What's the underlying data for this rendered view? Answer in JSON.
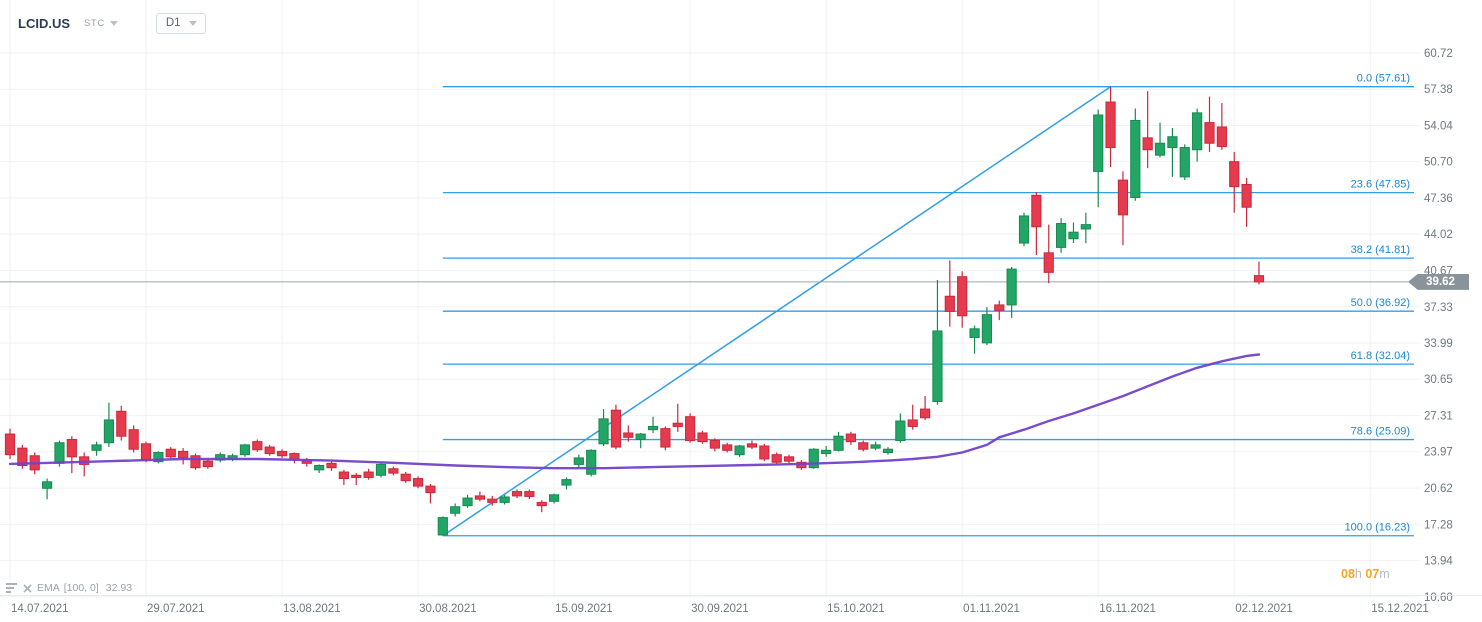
{
  "header": {
    "symbol": "LCID.US",
    "market_tag": "STC",
    "timeframe": "D1"
  },
  "indicator_row": {
    "name": "EMA",
    "params": "[100, 0]",
    "value": "32.93"
  },
  "countdown": {
    "hours_value": "08",
    "hours_unit": "h",
    "minutes_value": "07",
    "minutes_unit": "m"
  },
  "price_badge": "39.62",
  "colors": {
    "up": "#23A566",
    "up_border": "#178A50",
    "down": "#E63B4E",
    "down_border": "#C9283C",
    "fib": "#2F9FE6",
    "fib_label": "#1B87D4",
    "trend": "#2F9FE6",
    "ema_line": "#7142C9",
    "price_line": "#9FA6AC",
    "badge_bg": "#8A929A",
    "grid": "#F0F2F4",
    "axis_text": "#6F7782",
    "accent_orange": "#F5A623"
  },
  "chart_data": {
    "type": "candlestick",
    "title": "LCID.US D1",
    "current_price": 39.62,
    "y_ticks": [
      "60.72",
      "57.38",
      "54.04",
      "50.70",
      "47.36",
      "44.02",
      "40.67",
      "37.33",
      "33.99",
      "30.65",
      "27.31",
      "23.97",
      "20.62",
      "17.28",
      "13.94",
      "10.60"
    ],
    "y_axis_range": [
      10.6,
      60.72
    ],
    "grid": true,
    "x_ticks": [
      {
        "label": "14.07.2021",
        "index": 0
      },
      {
        "label": "29.07.2021",
        "index": 11
      },
      {
        "label": "13.08.2021",
        "index": 22
      },
      {
        "label": "30.08.2021",
        "index": 33
      },
      {
        "label": "15.09.2021",
        "index": 44
      },
      {
        "label": "30.09.2021",
        "index": 55
      },
      {
        "label": "15.10.2021",
        "index": 66
      },
      {
        "label": "01.11.2021",
        "index": 77
      },
      {
        "label": "16.11.2021",
        "index": 88
      },
      {
        "label": "02.12.2021",
        "index": 99
      },
      {
        "label": "15.12.2021",
        "index": 110
      }
    ],
    "fib_levels": [
      {
        "label": "0.0 (57.61)",
        "price": 57.61
      },
      {
        "label": "23.6 (47.85)",
        "price": 47.85
      },
      {
        "label": "38.2 (41.81)",
        "price": 41.81
      },
      {
        "label": "50.0 (36.92)",
        "price": 36.92
      },
      {
        "label": "61.8 (32.04)",
        "price": 32.04
      },
      {
        "label": "78.6 (25.09)",
        "price": 25.09
      },
      {
        "label": "100.0 (16.23)",
        "price": 16.23
      }
    ],
    "trendline": {
      "from_index": 35,
      "from_price": 16.23,
      "to_index": 89,
      "to_price": 57.61
    },
    "ema": {
      "name": "EMA [100, 0]",
      "last_value": 32.93,
      "points": [
        [
          0,
          22.85
        ],
        [
          8,
          23.1
        ],
        [
          14,
          23.3
        ],
        [
          20,
          23.3
        ],
        [
          26,
          23.15
        ],
        [
          31,
          22.95
        ],
        [
          36,
          22.7
        ],
        [
          40,
          22.55
        ],
        [
          44,
          22.45
        ],
        [
          48,
          22.45
        ],
        [
          52,
          22.55
        ],
        [
          56,
          22.65
        ],
        [
          60,
          22.75
        ],
        [
          64,
          22.85
        ],
        [
          68,
          23.0
        ],
        [
          71,
          23.15
        ],
        [
          73,
          23.3
        ],
        [
          75,
          23.5
        ],
        [
          77,
          23.9
        ],
        [
          79,
          24.6
        ],
        [
          80,
          25.3
        ],
        [
          82,
          26.0
        ],
        [
          84,
          26.8
        ],
        [
          86,
          27.5
        ],
        [
          88,
          28.3
        ],
        [
          90,
          29.1
        ],
        [
          92,
          30.0
        ],
        [
          94,
          30.9
        ],
        [
          96,
          31.7
        ],
        [
          98,
          32.3
        ],
        [
          100,
          32.8
        ],
        [
          101,
          32.93
        ]
      ]
    },
    "candles": [
      [
        "14.07",
        25.6,
        26.1,
        23.3,
        23.7
      ],
      [
        "15.07",
        24.3,
        24.6,
        22.4,
        22.7
      ],
      [
        "16.07",
        23.6,
        23.9,
        21.9,
        22.3
      ],
      [
        "19.07",
        20.6,
        21.5,
        19.6,
        21.2
      ],
      [
        "20.07",
        22.9,
        25.0,
        22.6,
        24.8
      ],
      [
        "21.07",
        25.1,
        25.4,
        22.0,
        23.5
      ],
      [
        "22.07",
        23.5,
        23.9,
        21.7,
        22.8
      ],
      [
        "23.07",
        24.1,
        24.9,
        23.6,
        24.6
      ],
      [
        "26.07",
        24.8,
        28.5,
        24.4,
        26.9
      ],
      [
        "27.07",
        27.7,
        28.2,
        25.0,
        25.4
      ],
      [
        "28.07",
        26.0,
        26.4,
        23.9,
        24.2
      ],
      [
        "29.07",
        24.7,
        24.9,
        23.0,
        23.2
      ],
      [
        "30.07",
        23.05,
        24.0,
        22.9,
        23.9
      ],
      [
        "02.08",
        24.2,
        24.4,
        23.3,
        23.5
      ],
      [
        "03.08",
        24.0,
        24.3,
        22.8,
        23.4
      ],
      [
        "04.08",
        23.6,
        23.8,
        22.3,
        22.5
      ],
      [
        "05.08",
        23.1,
        23.3,
        22.4,
        22.6
      ],
      [
        "06.08",
        23.2,
        23.9,
        23.0,
        23.7
      ],
      [
        "09.08",
        23.3,
        23.8,
        23.1,
        23.6
      ],
      [
        "10.08",
        23.7,
        24.7,
        23.5,
        24.6
      ],
      [
        "11.08",
        24.9,
        25.1,
        23.95,
        24.15
      ],
      [
        "12.08",
        24.4,
        24.6,
        23.6,
        23.8
      ],
      [
        "13.08",
        24.0,
        24.2,
        23.4,
        23.6
      ],
      [
        "16.08",
        23.8,
        23.9,
        22.9,
        23.3
      ],
      [
        "17.08",
        23.2,
        23.4,
        22.6,
        22.9
      ],
      [
        "18.08",
        22.3,
        22.8,
        22.0,
        22.7
      ],
      [
        "19.08",
        22.9,
        23.1,
        22.2,
        22.5
      ],
      [
        "20.08",
        22.1,
        22.3,
        20.9,
        21.5
      ],
      [
        "23.08",
        21.8,
        22.0,
        20.9,
        21.6
      ],
      [
        "24.08",
        22.1,
        22.4,
        21.4,
        21.6
      ],
      [
        "25.08",
        21.8,
        23.0,
        21.6,
        22.8
      ],
      [
        "26.08",
        22.4,
        22.6,
        21.8,
        22.0
      ],
      [
        "27.08",
        21.9,
        22.1,
        21.1,
        21.3
      ],
      [
        "30.08",
        21.5,
        21.7,
        20.6,
        20.8
      ],
      [
        "31.08",
        20.8,
        21.0,
        19.2,
        20.2
      ],
      [
        "01.09",
        16.3,
        18.0,
        16.23,
        17.9
      ],
      [
        "02.09",
        18.3,
        19.2,
        18.0,
        18.9
      ],
      [
        "03.09",
        19.0,
        20.0,
        18.8,
        19.7
      ],
      [
        "07.09",
        19.9,
        20.3,
        19.4,
        19.6
      ],
      [
        "08.09",
        19.6,
        19.9,
        19.0,
        19.3
      ],
      [
        "09.09",
        19.3,
        20.0,
        19.1,
        19.8
      ],
      [
        "10.09",
        20.3,
        20.5,
        19.7,
        19.9
      ],
      [
        "13.09",
        20.3,
        20.5,
        19.6,
        19.85
      ],
      [
        "14.09",
        19.3,
        19.5,
        18.4,
        19.0
      ],
      [
        "15.09",
        19.4,
        20.1,
        19.2,
        20.0
      ],
      [
        "16.09",
        20.9,
        21.6,
        20.5,
        21.4
      ],
      [
        "17.09",
        22.8,
        23.7,
        22.5,
        23.4
      ],
      [
        "20.09",
        21.9,
        24.2,
        21.7,
        24.1
      ],
      [
        "21.09",
        24.7,
        27.9,
        24.5,
        27.0
      ],
      [
        "22.09",
        27.8,
        28.3,
        24.2,
        24.4
      ],
      [
        "23.09",
        25.7,
        26.4,
        24.9,
        25.3
      ],
      [
        "24.09",
        25.1,
        25.7,
        24.3,
        25.6
      ],
      [
        "27.09",
        26.0,
        27.2,
        25.7,
        26.3
      ],
      [
        "28.09",
        26.1,
        26.3,
        24.1,
        24.4
      ],
      [
        "29.09",
        26.6,
        28.4,
        25.8,
        26.3
      ],
      [
        "30.09",
        27.2,
        27.5,
        24.8,
        25.0
      ],
      [
        "01.10",
        25.7,
        25.9,
        24.7,
        24.9
      ],
      [
        "04.10",
        25.0,
        25.2,
        24.0,
        24.3
      ],
      [
        "05.10",
        24.6,
        24.8,
        23.9,
        24.1
      ],
      [
        "06.10",
        23.7,
        24.6,
        23.5,
        24.5
      ],
      [
        "07.10",
        24.7,
        25.0,
        24.2,
        24.4
      ],
      [
        "08.10",
        24.5,
        24.7,
        23.1,
        23.3
      ],
      [
        "11.10",
        23.7,
        23.9,
        22.8,
        23.0
      ],
      [
        "12.10",
        23.5,
        23.7,
        22.9,
        23.1
      ],
      [
        "13.10",
        23.0,
        23.2,
        22.3,
        22.5
      ],
      [
        "14.10",
        22.5,
        24.3,
        22.4,
        24.2
      ],
      [
        "15.10",
        23.8,
        24.5,
        23.5,
        24.1
      ],
      [
        "18.10",
        24.1,
        25.8,
        24.0,
        25.4
      ],
      [
        "19.10",
        25.6,
        25.8,
        24.6,
        24.9
      ],
      [
        "20.10",
        24.8,
        25.0,
        24.0,
        24.2
      ],
      [
        "21.10",
        24.3,
        24.9,
        24.1,
        24.6
      ],
      [
        "22.10",
        23.9,
        24.4,
        23.7,
        24.2
      ],
      [
        "25.10",
        25.0,
        27.5,
        24.8,
        26.8
      ],
      [
        "26.10",
        26.9,
        28.3,
        26.0,
        26.3
      ],
      [
        "27.10",
        27.9,
        29.1,
        26.9,
        27.1
      ],
      [
        "28.10",
        28.6,
        39.8,
        28.3,
        35.1
      ],
      [
        "29.10",
        38.3,
        41.6,
        35.5,
        36.9
      ],
      [
        "01.11",
        40.1,
        40.6,
        35.4,
        36.5
      ],
      [
        "02.11",
        34.5,
        35.6,
        33.0,
        35.3
      ],
      [
        "03.11",
        34.0,
        37.3,
        33.8,
        36.6
      ],
      [
        "04.11",
        37.5,
        37.9,
        36.1,
        37.0
      ],
      [
        "05.11",
        37.5,
        41.0,
        36.3,
        40.8
      ],
      [
        "08.11",
        43.2,
        46.0,
        42.9,
        45.7
      ],
      [
        "09.11",
        47.6,
        47.9,
        42.1,
        44.7
      ],
      [
        "10.11",
        42.3,
        44.9,
        39.5,
        40.5
      ],
      [
        "11.11",
        42.8,
        45.5,
        42.3,
        45.0
      ],
      [
        "12.11",
        43.6,
        45.1,
        43.2,
        44.2
      ],
      [
        "15.11",
        44.5,
        46.0,
        43.2,
        44.9
      ],
      [
        "16.11",
        49.8,
        55.5,
        46.5,
        55.0
      ],
      [
        "17.11",
        56.2,
        57.61,
        50.2,
        52.0
      ],
      [
        "18.11",
        49.0,
        49.8,
        43.0,
        45.8
      ],
      [
        "19.11",
        47.4,
        55.6,
        47.1,
        54.5
      ],
      [
        "22.11",
        52.9,
        57.2,
        50.1,
        51.8
      ],
      [
        "23.11",
        51.3,
        54.3,
        51.1,
        52.4
      ],
      [
        "24.11",
        52.0,
        53.8,
        49.3,
        53.0
      ],
      [
        "26.11",
        49.3,
        52.3,
        49.0,
        52.0
      ],
      [
        "29.11",
        51.8,
        55.6,
        50.7,
        55.2
      ],
      [
        "30.11",
        54.3,
        56.7,
        51.6,
        52.4
      ],
      [
        "01.12",
        53.9,
        56.1,
        51.8,
        52.1
      ],
      [
        "02.12",
        50.7,
        51.6,
        46.0,
        48.4
      ],
      [
        "03.12",
        48.6,
        49.2,
        44.7,
        46.5
      ],
      [
        "06.12",
        40.2,
        41.5,
        39.4,
        39.62
      ]
    ]
  }
}
